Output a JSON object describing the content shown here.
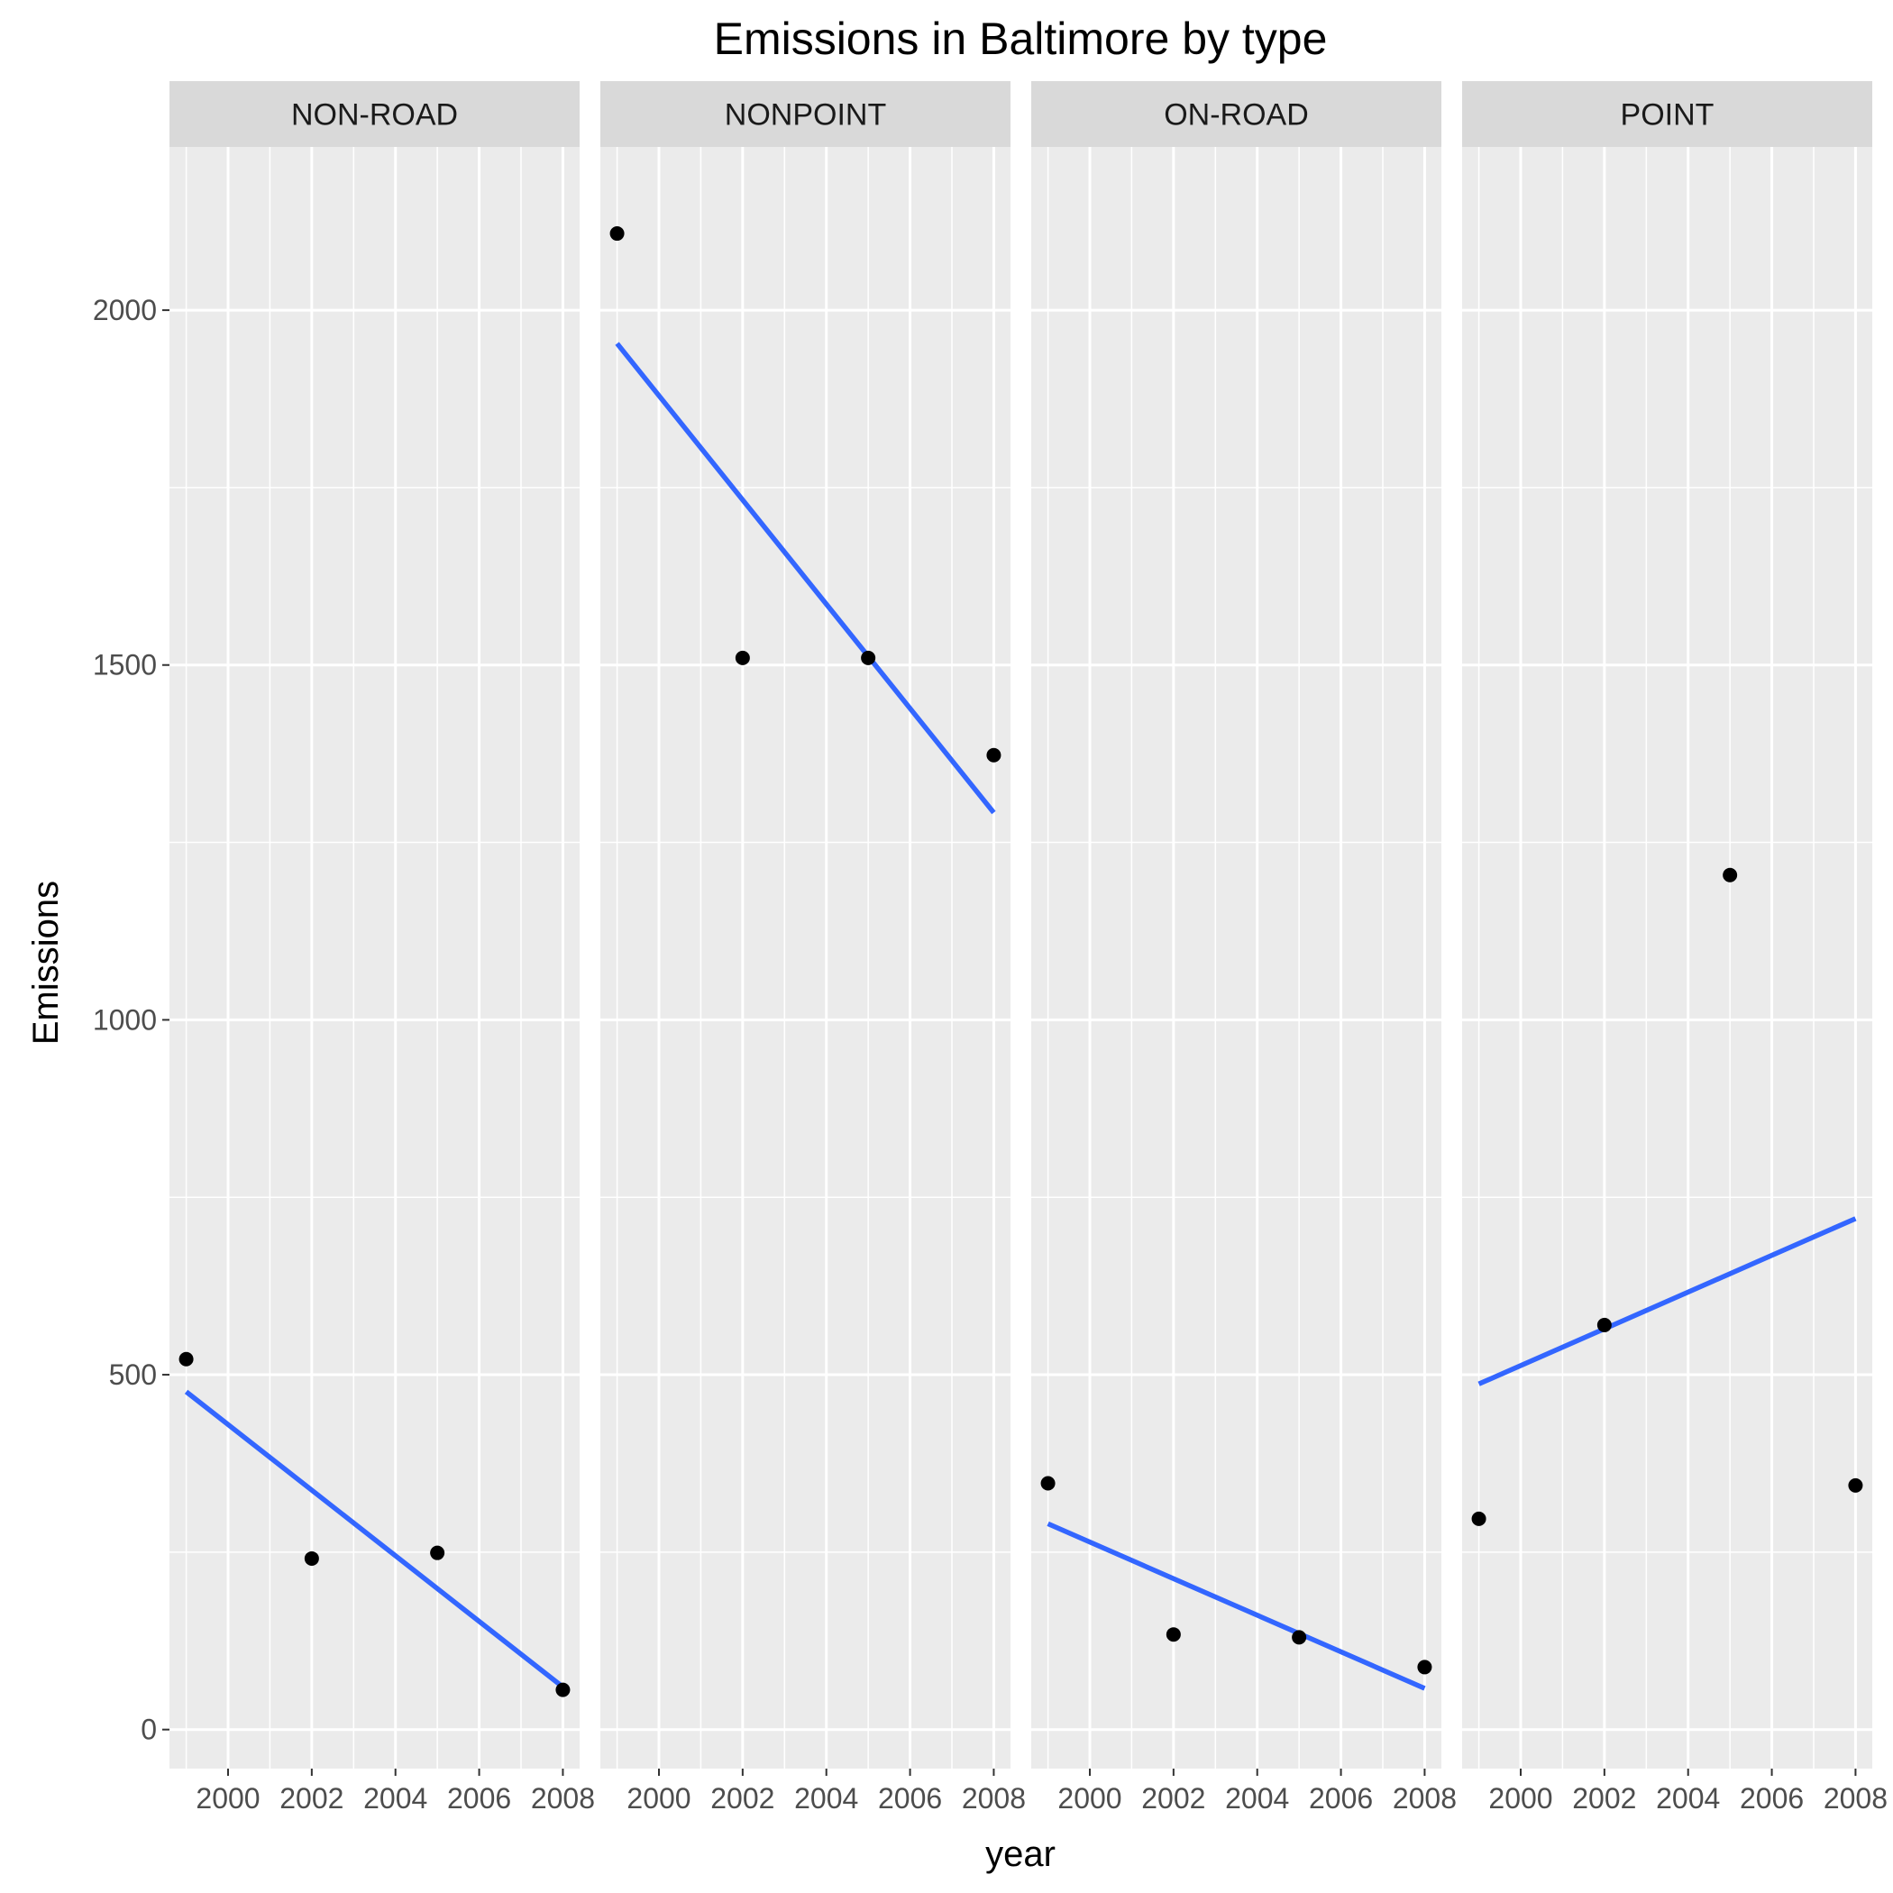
{
  "chart_data": {
    "type": "scatter",
    "title": "Emissions in Baltimore by type",
    "xlabel": "year",
    "ylabel": "Emissions",
    "xlim": [
      1998.6,
      2008.4
    ],
    "ylim": [
      -55,
      2230
    ],
    "x_ticks": [
      2000,
      2002,
      2004,
      2006,
      2008
    ],
    "x_tick_labels": [
      "2000",
      "2002",
      "2004",
      "2006",
      "2008"
    ],
    "y_ticks": [
      0,
      500,
      1000,
      1500,
      2000
    ],
    "y_tick_labels": [
      "0",
      "500",
      "1000",
      "1500",
      "2000"
    ],
    "grid": true,
    "point_color": "#000000",
    "line_color": "#3366ff",
    "panel_bg": "#ebebeb",
    "strip_bg": "#d9d9d9",
    "facets": [
      {
        "name": "NON-ROAD",
        "x": [
          1999,
          2002,
          2005,
          2008
        ],
        "y": [
          522,
          241,
          249,
          56
        ],
        "trend": [
          [
            1999,
            476
          ],
          [
            2008,
            60
          ]
        ]
      },
      {
        "name": "NONPOINT",
        "x": [
          1999,
          2002,
          2005,
          2008
        ],
        "y": [
          2108,
          1510,
          1510,
          1373
        ],
        "trend": [
          [
            1999,
            1953
          ],
          [
            2008,
            1292
          ]
        ]
      },
      {
        "name": "ON-ROAD",
        "x": [
          1999,
          2002,
          2005,
          2008
        ],
        "y": [
          347,
          134,
          130,
          88
        ],
        "trend": [
          [
            1999,
            290
          ],
          [
            2008,
            58
          ]
        ]
      },
      {
        "name": "POINT",
        "x": [
          1999,
          2002,
          2005,
          2008
        ],
        "y": [
          297,
          570,
          1204,
          344
        ],
        "trend": [
          [
            1999,
            487
          ],
          [
            2008,
            720
          ]
        ]
      }
    ]
  }
}
